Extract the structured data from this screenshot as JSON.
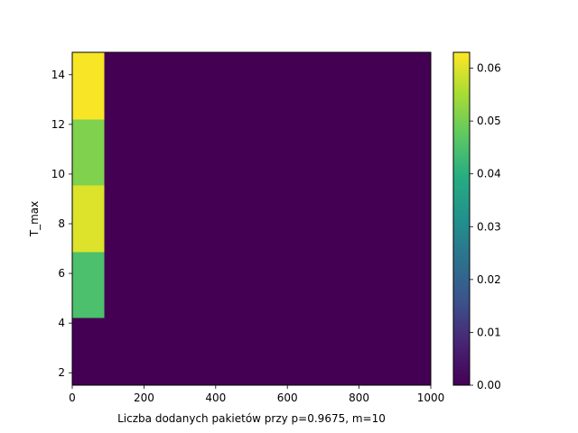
{
  "chart_data": {
    "type": "heatmap",
    "xlabel": "Liczba dodanych pakietów przy p=0.9675, m=10",
    "ylabel": "T_max",
    "xlim": [
      0,
      1000
    ],
    "ylim": [
      1.5,
      14.9
    ],
    "x_ticks": [
      0,
      200,
      400,
      600,
      800,
      1000
    ],
    "y_ticks": [
      2,
      4,
      6,
      8,
      10,
      12,
      14
    ],
    "x_bins": [
      0,
      90,
      1000
    ],
    "y_bins": [
      1.5,
      4.2,
      6.85,
      9.55,
      12.2,
      14.9
    ],
    "values": [
      [
        0.0,
        0.0
      ],
      [
        0.045,
        0.0
      ],
      [
        0.06,
        0.0
      ],
      [
        0.051,
        0.0
      ],
      [
        0.0625,
        0.0
      ]
    ],
    "colorbar": {
      "min": 0.0,
      "max": 0.063,
      "ticks": [
        "0.00",
        "0.01",
        "0.02",
        "0.03",
        "0.04",
        "0.05",
        "0.06"
      ],
      "colormap": "viridis"
    },
    "grid": false
  }
}
